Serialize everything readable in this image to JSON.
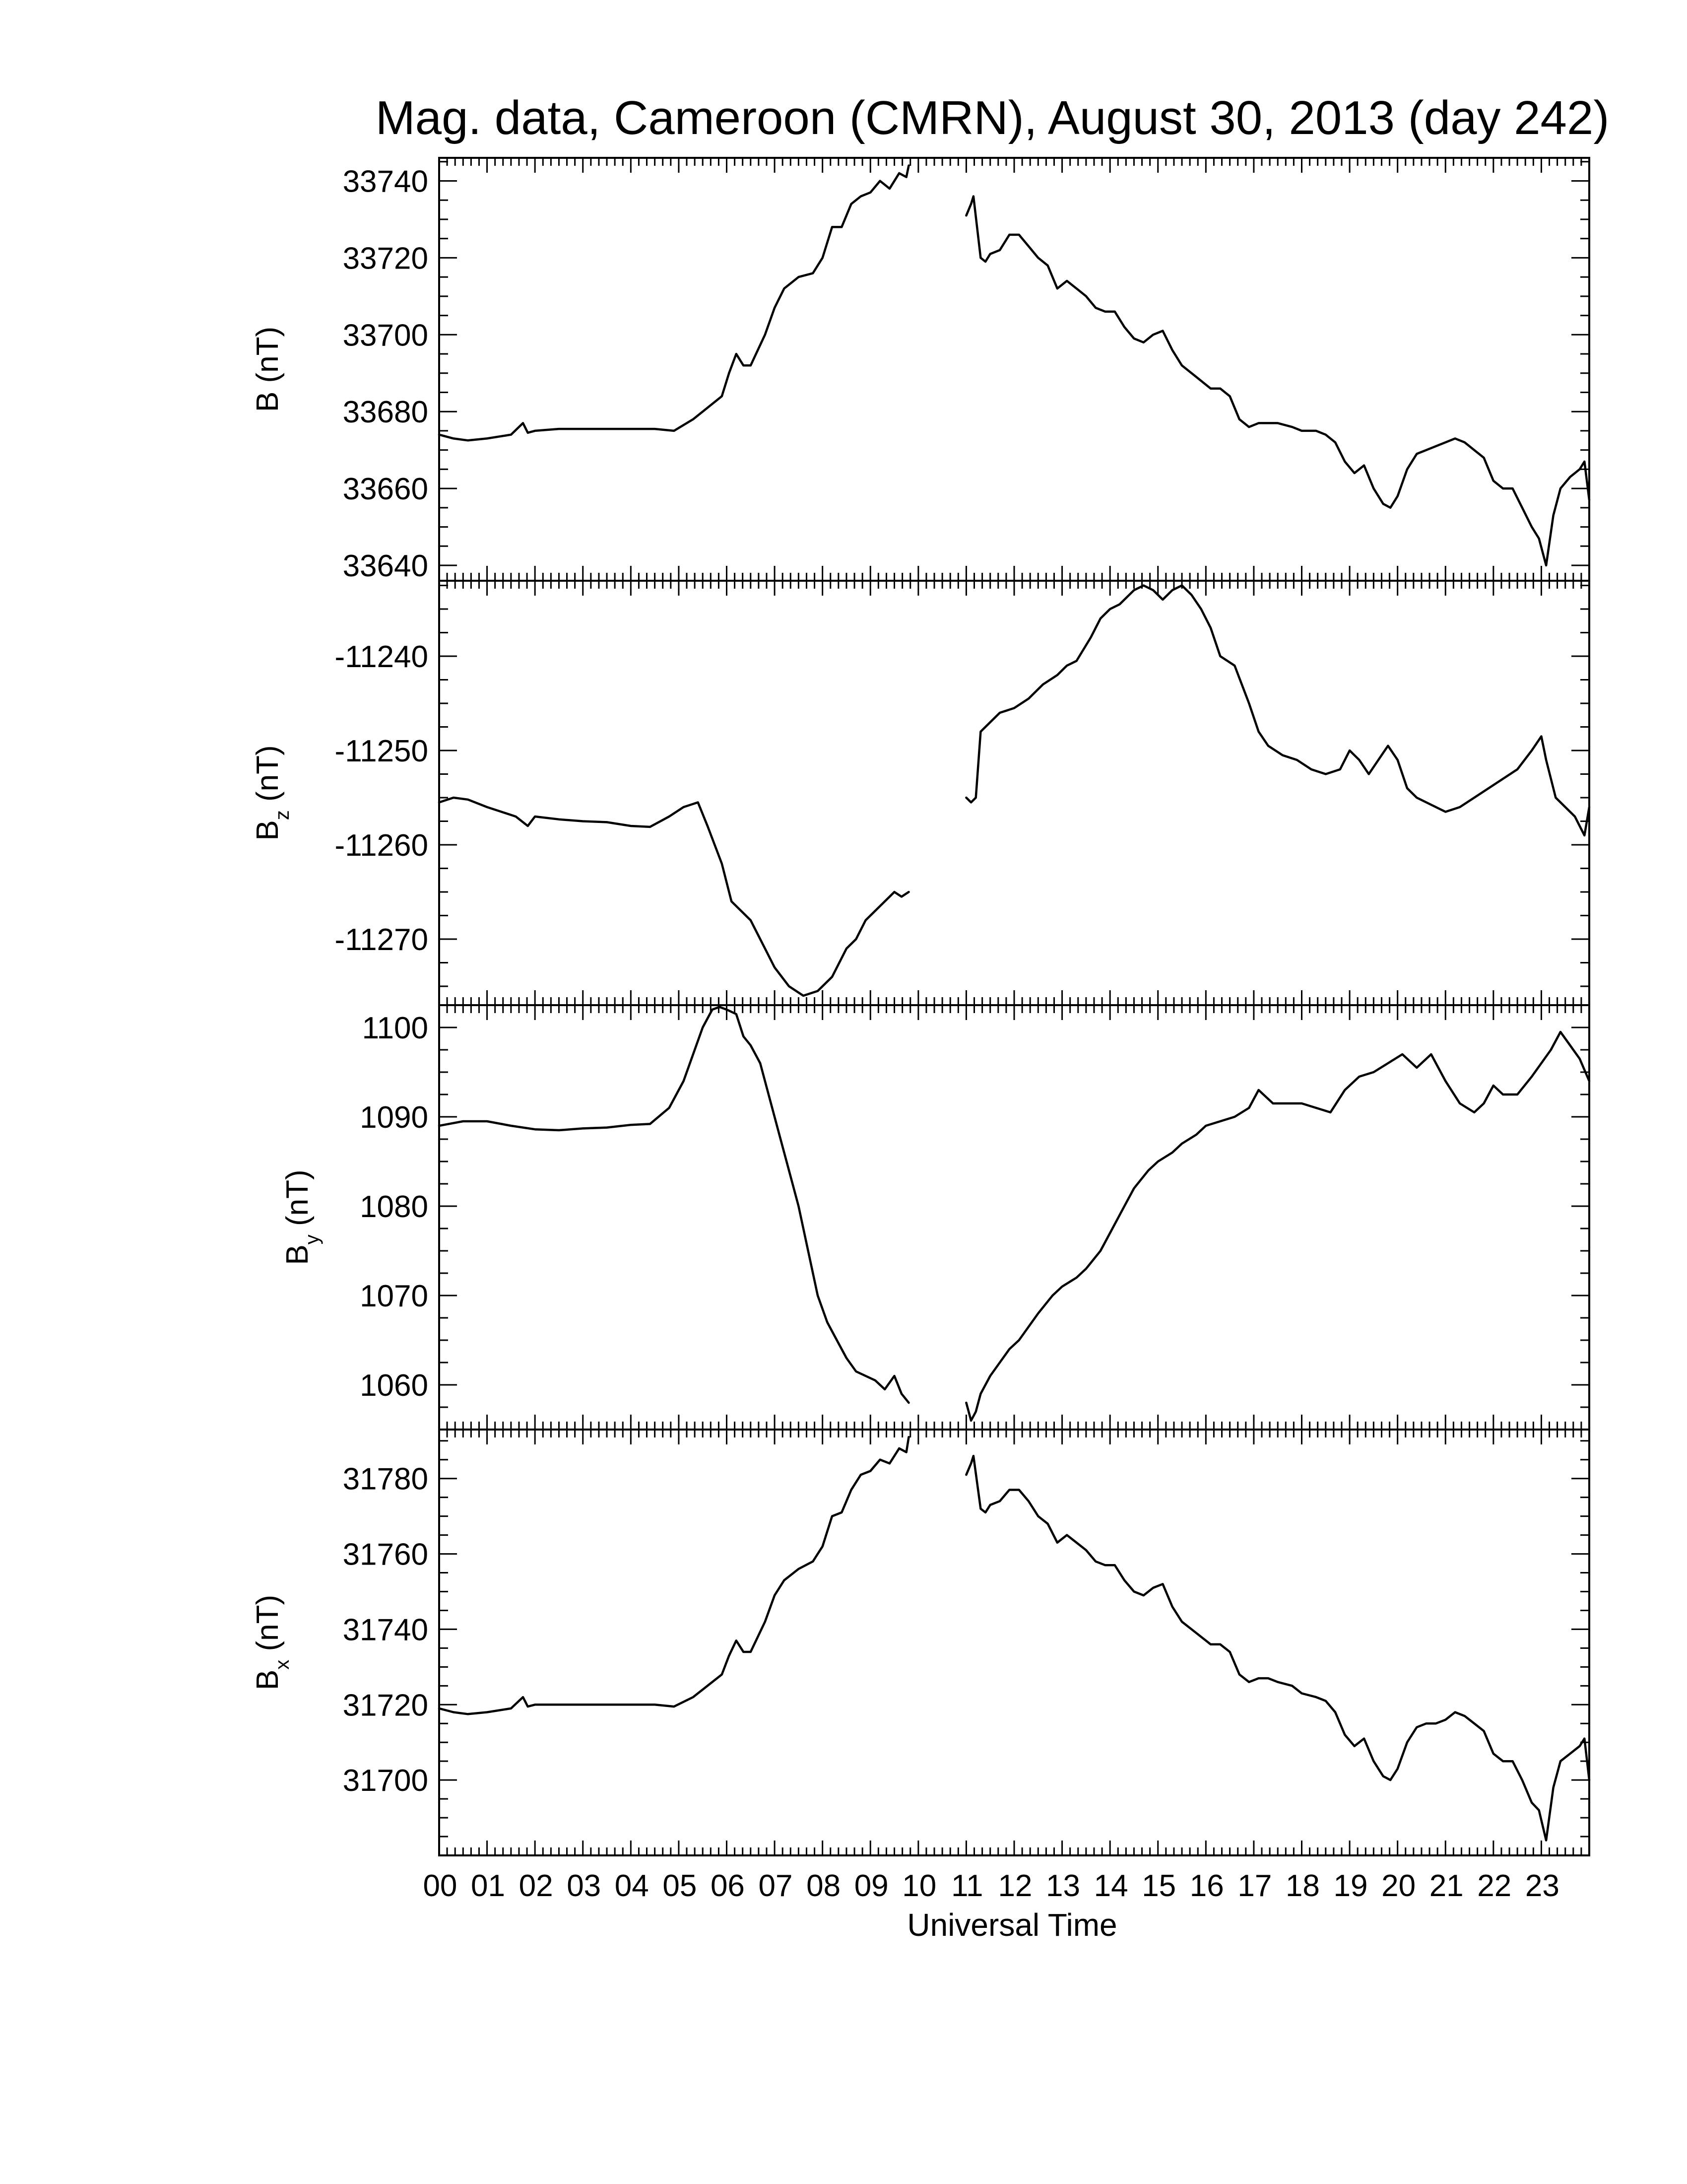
{
  "chart_data": {
    "type": "line",
    "title": "Mag. data, Cameroon (CMRN), August 30, 2013 (day 242)",
    "xlabel": "Universal Time",
    "x_unit": "hour (UT)",
    "xlim": [
      0,
      24
    ],
    "x_tick_labels": [
      "00",
      "01",
      "02",
      "03",
      "04",
      "05",
      "06",
      "07",
      "08",
      "09",
      "10",
      "11",
      "12",
      "13",
      "14",
      "15",
      "16",
      "17",
      "18",
      "19",
      "20",
      "21",
      "22",
      "23"
    ],
    "grid": false,
    "panels": [
      {
        "name": "B",
        "ylabel": {
          "main": "B",
          "sub": "",
          "unit": "(nT)"
        },
        "ylim": [
          33636,
          33746
        ],
        "yticks": [
          33640,
          33660,
          33680,
          33700,
          33720,
          33740
        ],
        "segments": [
          {
            "x": [
              0,
              0.3,
              0.6,
              1,
              1.5,
              1.75,
              1.85,
              2,
              2.5,
              3,
              3.5,
              4,
              4.5,
              4.9,
              5.3,
              5.7,
              5.9,
              6.05,
              6.2,
              6.35,
              6.5,
              6.8,
              7,
              7.2,
              7.5,
              7.8,
              8,
              8.2,
              8.4,
              8.6,
              8.8,
              9,
              9.2,
              9.4,
              9.6,
              9.75,
              9.8
            ],
            "y": [
              33674,
              33673,
              33672.5,
              33673,
              33674,
              33677,
              33674.5,
              33675,
              33675.5,
              33675.5,
              33675.5,
              33675.5,
              33675.5,
              33675,
              33678,
              33682,
              33684,
              33690,
              33695,
              33692,
              33692,
              33700,
              33707,
              33712,
              33715,
              33716,
              33720,
              33728,
              33728,
              33734,
              33736,
              33737,
              33740,
              33738,
              33742,
              33741,
              33744
            ]
          },
          {
            "x": [
              11,
              11.1,
              11.15,
              11.3,
              11.4,
              11.5,
              11.7,
              11.9,
              12.1,
              12.3,
              12.5,
              12.7,
              12.9,
              13.1,
              13.3,
              13.5,
              13.7,
              13.9,
              14.1,
              14.3,
              14.5,
              14.7,
              14.9,
              15.1,
              15.3,
              15.5,
              15.7,
              15.9,
              16.1,
              16.3,
              16.5,
              16.7,
              16.9,
              17.1,
              17.3,
              17.5,
              17.8,
              18,
              18.3,
              18.5,
              18.7,
              18.9,
              19.1,
              19.3,
              19.5,
              19.7,
              19.85,
              20,
              20.2,
              20.4,
              20.6,
              20.8,
              21,
              21.2,
              21.4,
              21.6,
              21.8,
              22,
              22.2,
              22.4,
              22.6,
              22.8,
              22.95,
              23.1,
              23.25,
              23.4,
              23.6,
              23.8,
              23.9,
              24
            ],
            "y": [
              33731,
              33734,
              33736,
              33720,
              33719,
              33721,
              33722,
              33726,
              33726,
              33723,
              33720,
              33718,
              33712,
              33714,
              33712,
              33710,
              33707,
              33706,
              33706,
              33702,
              33699,
              33698,
              33700,
              33701,
              33696,
              33692,
              33690,
              33688,
              33686,
              33686,
              33684,
              33678,
              33676,
              33677,
              33677,
              33677,
              33676,
              33675,
              33675,
              33674,
              33672,
              33667,
              33664,
              33666,
              33660,
              33656,
              33655,
              33658,
              33665,
              33669,
              33670,
              33671,
              33672,
              33673,
              33672,
              33670,
              33668,
              33662,
              33660,
              33660,
              33655,
              33650,
              33647,
              33640,
              33653,
              33660,
              33663,
              33665,
              33667,
              33657
            ]
          }
        ]
      },
      {
        "name": "Bz",
        "ylabel": {
          "main": "B",
          "sub": "z",
          "unit": "(nT)"
        },
        "ylim": [
          -11277,
          -11232
        ],
        "yticks": [
          -11240,
          -11250,
          -11260,
          -11270
        ],
        "segments": [
          {
            "x": [
              0,
              0.3,
              0.6,
              1,
              1.3,
              1.6,
              1.85,
              2,
              2.5,
              3,
              3.5,
              4,
              4.4,
              4.8,
              5.1,
              5.4,
              5.6,
              5.9,
              6.1,
              6.3,
              6.5,
              6.8,
              7,
              7.3,
              7.6,
              7.9,
              8.2,
              8.5,
              8.7,
              8.9,
              9.1,
              9.3,
              9.5,
              9.65,
              9.8
            ],
            "y": [
              -11255.5,
              -11255,
              -11255.2,
              -11256,
              -11256.5,
              -11257,
              -11258,
              -11257,
              -11257.3,
              -11257.5,
              -11257.6,
              -11258,
              -11258.1,
              -11257,
              -11256,
              -11255.5,
              -11258,
              -11262,
              -11266,
              -11267,
              -11268,
              -11271,
              -11273,
              -11275,
              -11276,
              -11275.5,
              -11274,
              -11271,
              -11270,
              -11268,
              -11267,
              -11266,
              -11265,
              -11265.5,
              -11265
            ]
          },
          {
            "x": [
              11,
              11.1,
              11.2,
              11.3,
              11.5,
              11.7,
              12,
              12.3,
              12.6,
              12.9,
              13.1,
              13.3,
              13.6,
              13.8,
              14,
              14.2,
              14.5,
              14.7,
              14.9,
              15.1,
              15.3,
              15.5,
              15.7,
              15.9,
              16.1,
              16.3,
              16.6,
              16.9,
              17.1,
              17.3,
              17.6,
              17.9,
              18.2,
              18.5,
              18.8,
              19,
              19.2,
              19.4,
              19.6,
              19.8,
              20,
              20.2,
              20.4,
              20.6,
              20.8,
              21,
              21.3,
              21.6,
              21.9,
              22.2,
              22.5,
              22.8,
              23,
              23.1,
              23.3,
              23.5,
              23.7,
              23.9,
              24
            ],
            "y": [
              -11255,
              -11255.5,
              -11255,
              -11248,
              -11247,
              -11246,
              -11245.5,
              -11244.5,
              -11243,
              -11242,
              -11241,
              -11240.5,
              -11238,
              -11236,
              -11235,
              -11234.5,
              -11233,
              -11232.5,
              -11233,
              -11234,
              -11233,
              -11232.5,
              -11233.5,
              -11235,
              -11237,
              -11240,
              -11241,
              -11245,
              -11248,
              -11249.5,
              -11250.5,
              -11251,
              -11252,
              -11252.5,
              -11252,
              -11250,
              -11251,
              -11252.5,
              -11251,
              -11249.5,
              -11251,
              -11254,
              -11255,
              -11255.5,
              -11256,
              -11256.5,
              -11256,
              -11255,
              -11254,
              -11253,
              -11252,
              -11250,
              -11248.5,
              -11251,
              -11255,
              -11256,
              -11257,
              -11259,
              -11256
            ]
          }
        ]
      },
      {
        "name": "By",
        "ylabel": {
          "main": "B",
          "sub": "y",
          "unit": "(nT)"
        },
        "ylim": [
          1055,
          1102.5
        ],
        "yticks": [
          1060,
          1070,
          1080,
          1090,
          1100
        ],
        "segments": [
          {
            "x": [
              0,
              0.5,
              1,
              1.5,
              2,
              2.5,
              3,
              3.5,
              4,
              4.4,
              4.8,
              5.1,
              5.3,
              5.5,
              5.7,
              5.85,
              6,
              6.2,
              6.35,
              6.5,
              6.7,
              6.9,
              7.1,
              7.3,
              7.5,
              7.7,
              7.9,
              8.1,
              8.3,
              8.5,
              8.7,
              8.9,
              9.1,
              9.3,
              9.5,
              9.65,
              9.8
            ],
            "y": [
              1089,
              1089.5,
              1089.5,
              1089,
              1088.6,
              1088.5,
              1088.7,
              1088.8,
              1089.1,
              1089.2,
              1091,
              1094,
              1097,
              1100,
              1102,
              1102.3,
              1102,
              1101.5,
              1099,
              1098,
              1096,
              1092,
              1088,
              1084,
              1080,
              1075,
              1070,
              1067,
              1065,
              1063,
              1061.5,
              1061,
              1060.5,
              1059.5,
              1061,
              1059,
              1058
            ]
          },
          {
            "x": [
              11,
              11.1,
              11.2,
              11.3,
              11.5,
              11.7,
              11.9,
              12.1,
              12.3,
              12.5,
              12.8,
              13,
              13.3,
              13.5,
              13.8,
              14,
              14.3,
              14.5,
              14.8,
              15,
              15.3,
              15.5,
              15.8,
              16,
              16.3,
              16.6,
              16.9,
              17.1,
              17.4,
              17.7,
              18,
              18.3,
              18.6,
              18.9,
              19.2,
              19.5,
              19.8,
              20.1,
              20.4,
              20.7,
              21,
              21.3,
              21.6,
              21.8,
              22,
              22.2,
              22.5,
              22.8,
              23,
              23.2,
              23.4,
              23.6,
              23.8,
              24
            ],
            "y": [
              1058,
              1056,
              1057,
              1059,
              1061,
              1062.5,
              1064,
              1065,
              1066.5,
              1068,
              1070,
              1071,
              1072,
              1073,
              1075,
              1077,
              1080,
              1082,
              1084,
              1085,
              1086,
              1087,
              1088,
              1089,
              1089.5,
              1090,
              1091,
              1093,
              1091.5,
              1091.5,
              1091.5,
              1091,
              1090.5,
              1093,
              1094.5,
              1095,
              1096,
              1097,
              1095.5,
              1097,
              1094,
              1091.5,
              1090.5,
              1091.5,
              1093.5,
              1092.5,
              1092.5,
              1094.5,
              1096,
              1097.5,
              1099.5,
              1098,
              1096.5,
              1094
            ]
          }
        ]
      },
      {
        "name": "Bx",
        "ylabel": {
          "main": "B",
          "sub": "x",
          "unit": "(nT)"
        },
        "ylim": [
          1680,
          1793
        ],
        "ylim_actual": [
          31680,
          31793
        ],
        "yticks": [
          31700,
          31720,
          31740,
          31760,
          31780
        ],
        "segments": [
          {
            "x": [
              0,
              0.3,
              0.6,
              1,
              1.5,
              1.75,
              1.85,
              2,
              2.5,
              3,
              3.5,
              4,
              4.5,
              4.9,
              5.3,
              5.7,
              5.9,
              6.05,
              6.2,
              6.35,
              6.5,
              6.8,
              7,
              7.2,
              7.5,
              7.8,
              8,
              8.2,
              8.4,
              8.6,
              8.8,
              9,
              9.2,
              9.4,
              9.6,
              9.75,
              9.8
            ],
            "y": [
              31719,
              31718,
              31717.5,
              31718,
              31719,
              31722,
              31719.5,
              31720,
              31720,
              31720,
              31720,
              31720,
              31720,
              31719.5,
              31722,
              31726,
              31728,
              31733,
              31737,
              31734,
              31734,
              31742,
              31749,
              31753,
              31756,
              31758,
              31762,
              31770,
              31771,
              31777,
              31781,
              31782,
              31785,
              31784,
              31788,
              31787,
              31791
            ]
          },
          {
            "x": [
              11,
              11.1,
              11.15,
              11.3,
              11.4,
              11.5,
              11.7,
              11.9,
              12.1,
              12.3,
              12.5,
              12.7,
              12.9,
              13.1,
              13.3,
              13.5,
              13.7,
              13.9,
              14.1,
              14.3,
              14.5,
              14.7,
              14.9,
              15.1,
              15.3,
              15.5,
              15.7,
              15.9,
              16.1,
              16.3,
              16.5,
              16.7,
              16.9,
              17.1,
              17.3,
              17.5,
              17.8,
              18,
              18.3,
              18.5,
              18.7,
              18.9,
              19.1,
              19.3,
              19.5,
              19.7,
              19.85,
              20,
              20.2,
              20.4,
              20.6,
              20.8,
              21,
              21.2,
              21.4,
              21.6,
              21.8,
              22,
              22.2,
              22.4,
              22.6,
              22.8,
              22.95,
              23.1,
              23.25,
              23.4,
              23.6,
              23.8,
              23.9,
              24
            ],
            "y": [
              31781,
              31784,
              31786,
              31772,
              31771,
              31773,
              31774,
              31777,
              31777,
              31774,
              31770,
              31768,
              31763,
              31765,
              31763,
              31761,
              31758,
              31757,
              31757,
              31753,
              31750,
              31749,
              31751,
              31752,
              31746,
              31742,
              31740,
              31738,
              31736,
              31736,
              31734,
              31728,
              31726,
              31727,
              31727,
              31726,
              31725,
              31723,
              31722,
              31721,
              31718,
              31712,
              31709,
              31711,
              31705,
              31701,
              31700,
              31703,
              31710,
              31714,
              31715,
              31715,
              31716,
              31718,
              31717,
              31715,
              31713,
              31707,
              31705,
              31705,
              31700,
              31694,
              31692,
              31684,
              31698,
              31705,
              31707,
              31709,
              31711,
              31700
            ]
          }
        ]
      }
    ]
  }
}
